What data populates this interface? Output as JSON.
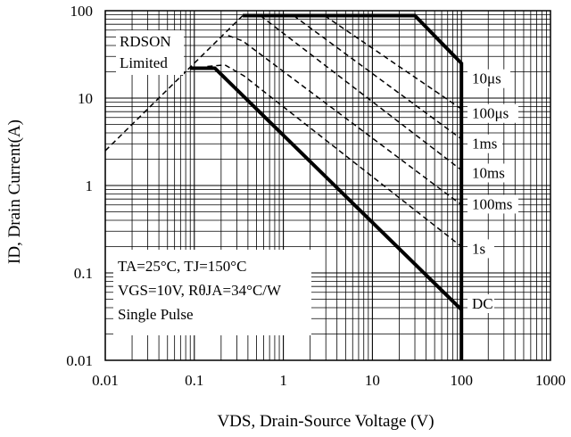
{
  "chart_data": {
    "type": "line",
    "xscale": "log",
    "yscale": "log",
    "xlim": [
      0.01,
      1000
    ],
    "ylim": [
      0.01,
      100
    ],
    "grid": true,
    "xlabel": "VDS, Drain-Source Voltage (V)",
    "ylabel": "ID, Drain Current(A)",
    "x_ticks": [
      "0.01",
      "0.1",
      "1",
      "10",
      "100",
      "1000"
    ],
    "y_ticks": [
      "0.01",
      "0.1",
      "1",
      "10",
      "100"
    ],
    "region_label": [
      "RDSON",
      "Limited"
    ],
    "conditions": [
      "TA=25°C, TJ=150°C",
      "VGS=10V, RθJA=34°C/W",
      "Single Pulse"
    ],
    "rdson_limit": {
      "style": "dashed",
      "x": [
        0.01,
        0.35
      ],
      "y": [
        2.5,
        88
      ]
    },
    "series": [
      {
        "name": "10μs",
        "style": "thick",
        "x": [
          0.35,
          30,
          100,
          100
        ],
        "y": [
          88,
          88,
          25,
          0.01
        ]
      },
      {
        "name": "100μs",
        "style": "dashed",
        "x": [
          2.9,
          100
        ],
        "y": [
          88,
          7.5
        ]
      },
      {
        "name": "1ms",
        "style": "dashed",
        "x": [
          1.3,
          100
        ],
        "y": [
          88,
          3.4
        ]
      },
      {
        "name": "10ms",
        "style": "dashed",
        "x": [
          0.55,
          100
        ],
        "y": [
          88,
          1.5
        ]
      },
      {
        "name": "100ms",
        "style": "dashed",
        "x": [
          0.24,
          0.35,
          100
        ],
        "y": [
          52,
          45,
          0.6
        ]
      },
      {
        "name": "1s",
        "style": "dashed",
        "x": [
          0.14,
          0.22,
          0.36,
          100
        ],
        "y": [
          23,
          24,
          18,
          0.2
        ]
      },
      {
        "name": "DC",
        "style": "thick",
        "x": [
          0.09,
          0.17,
          100
        ],
        "y": [
          22,
          22,
          0.038
        ]
      }
    ],
    "series_label_y": [
      15,
      6.0,
      2.7,
      1.25,
      0.55,
      0.17,
      0.04
    ]
  }
}
